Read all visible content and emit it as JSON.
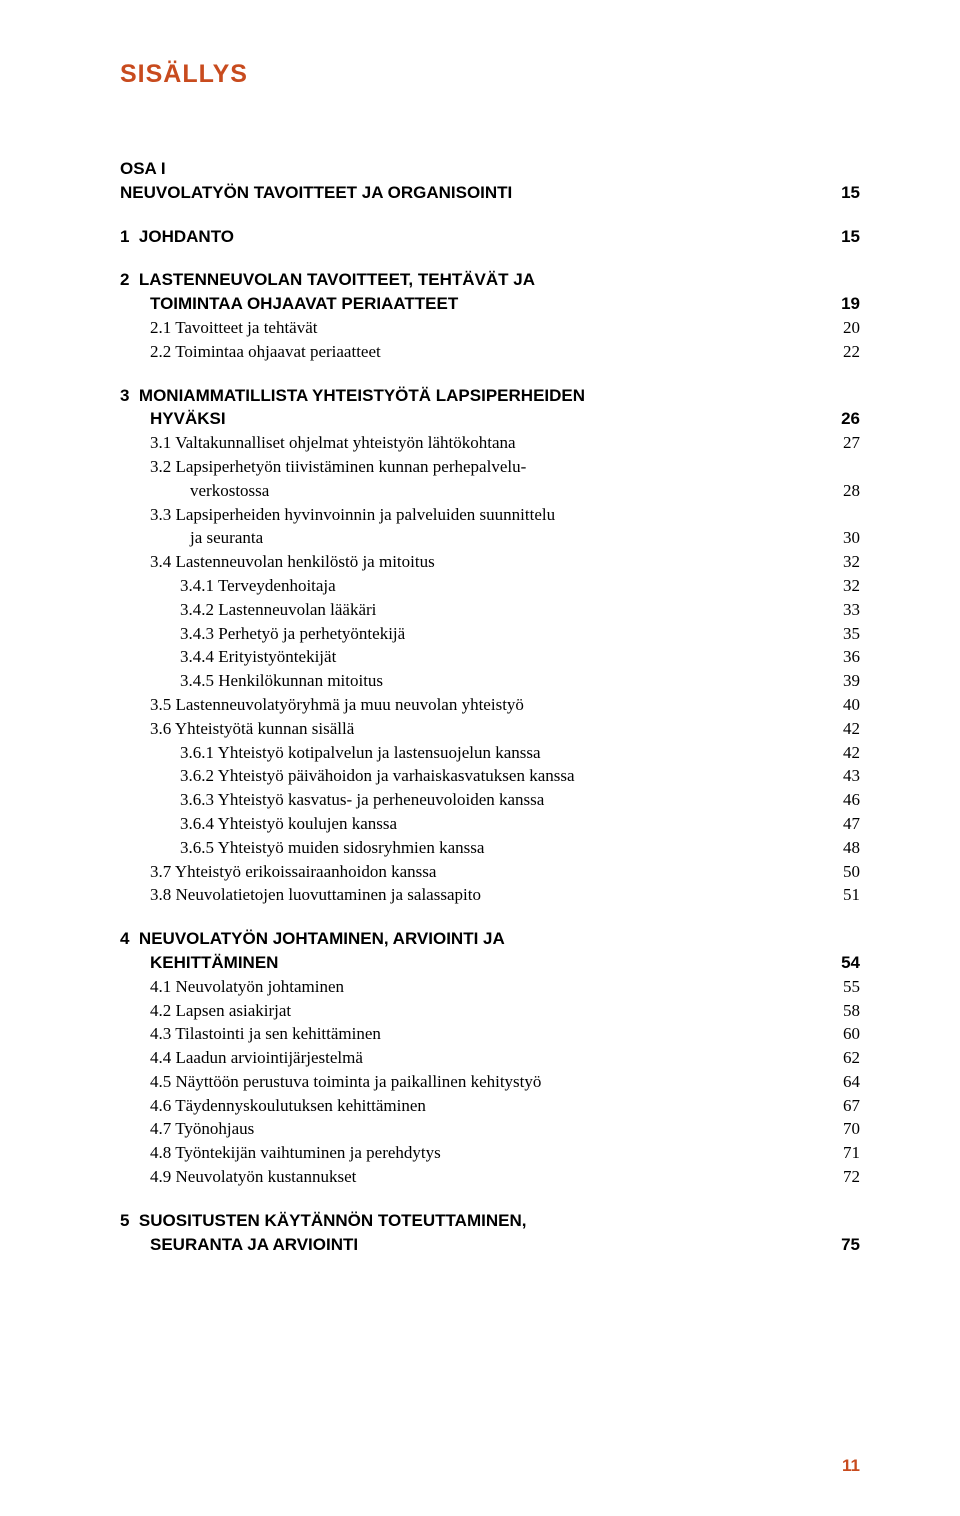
{
  "colors": {
    "accent": "#c84b1e",
    "text": "#222222",
    "background": "#ffffff"
  },
  "typography": {
    "title_font": "Arial",
    "title_size_pt": 19,
    "title_weight": 900,
    "body_font": "Georgia",
    "body_size_pt": 13,
    "bold_font": "Arial"
  },
  "title": "SISÄLLYS",
  "page_number": "11",
  "toc": {
    "part": {
      "heading1": "OSA I",
      "heading2": "NEUVOLATYÖN TAVOITTEET JA ORGANISOINTI",
      "page": "15"
    },
    "ch1": {
      "num": "1",
      "title": "JOHDANTO",
      "page": "15"
    },
    "ch2": {
      "num": "2",
      "title_line1": "LASTENNEUVOLAN TAVOITTEET, TEHTÄVÄT JA",
      "title_line2": "TOIMINTAA OHJAAVAT PERIAATTEET",
      "page": "19",
      "items": [
        {
          "label": "2.1 Tavoitteet ja tehtävät",
          "page": "20"
        },
        {
          "label": "2.2 Toimintaa ohjaavat periaatteet",
          "page": "22"
        }
      ]
    },
    "ch3": {
      "num": "3",
      "title_line1": "MONIAMMATILLISTA YHTEISTYÖTÄ LAPSIPERHEIDEN",
      "title_line2": "HYVÄKSI",
      "page": "26",
      "items": [
        {
          "label": "3.1 Valtakunnalliset ohjelmat yhteistyön lähtökohtana",
          "page": "27"
        },
        {
          "label_l1": "3.2 Lapsiperhetyön tiivistäminen kunnan perhepalvelu-",
          "label_l2": "verkostossa",
          "page": "28"
        },
        {
          "label_l1": "3.3 Lapsiperheiden hyvinvoinnin ja palveluiden suunnittelu",
          "label_l2": "ja seuranta",
          "page": "30"
        },
        {
          "label": "3.4 Lastenneuvolan henkilöstö ja mitoitus",
          "page": "32"
        },
        {
          "label": "3.4.1 Terveydenhoitaja",
          "page": "32",
          "sub": true
        },
        {
          "label": "3.4.2 Lastenneuvolan lääkäri",
          "page": "33",
          "sub": true
        },
        {
          "label": "3.4.3 Perhetyö ja perhetyöntekijä",
          "page": "35",
          "sub": true
        },
        {
          "label": "3.4.4 Erityistyöntekijät",
          "page": "36",
          "sub": true
        },
        {
          "label": "3.4.5 Henkilökunnan mitoitus",
          "page": "39",
          "sub": true
        },
        {
          "label": "3.5 Lastenneuvolatyöryhmä ja muu neuvolan yhteistyö",
          "page": "40"
        },
        {
          "label": "3.6 Yhteistyötä kunnan sisällä",
          "page": "42"
        },
        {
          "label": "3.6.1 Yhteistyö kotipalvelun ja lastensuojelun kanssa",
          "page": "42",
          "sub": true
        },
        {
          "label": "3.6.2 Yhteistyö päivähoidon ja varhaiskasvatuksen kanssa",
          "page": "43",
          "sub": true
        },
        {
          "label": "3.6.3 Yhteistyö kasvatus- ja perheneuvoloiden kanssa",
          "page": "46",
          "sub": true
        },
        {
          "label": "3.6.4 Yhteistyö koulujen kanssa",
          "page": "47",
          "sub": true
        },
        {
          "label": "3.6.5 Yhteistyö muiden sidosryhmien kanssa",
          "page": "48",
          "sub": true
        },
        {
          "label": "3.7 Yhteistyö erikoissairaanhoidon kanssa",
          "page": "50"
        },
        {
          "label": "3.8 Neuvolatietojen luovuttaminen ja salassapito",
          "page": "51"
        }
      ]
    },
    "ch4": {
      "num": "4",
      "title_line1": "NEUVOLATYÖN JOHTAMINEN, ARVIOINTI JA",
      "title_line2": "KEHITTÄMINEN",
      "page": "54",
      "items": [
        {
          "label": "4.1 Neuvolatyön johtaminen",
          "page": "55"
        },
        {
          "label": "4.2 Lapsen asiakirjat",
          "page": "58"
        },
        {
          "label": "4.3 Tilastointi ja sen kehittäminen",
          "page": "60"
        },
        {
          "label": "4.4 Laadun arviointijärjestelmä",
          "page": "62"
        },
        {
          "label": "4.5 Näyttöön perustuva toiminta ja paikallinen kehitystyö",
          "page": "64"
        },
        {
          "label": "4.6 Täydennyskoulutuksen kehittäminen",
          "page": "67"
        },
        {
          "label": "4.7 Työnohjaus",
          "page": "70"
        },
        {
          "label": "4.8 Työntekijän vaihtuminen ja perehdytys",
          "page": "71"
        },
        {
          "label": "4.9 Neuvolatyön kustannukset",
          "page": "72"
        }
      ]
    },
    "ch5": {
      "num": "5",
      "title_line1": "SUOSITUSTEN KÄYTÄNNÖN TOTEUTTAMINEN,",
      "title_line2": "SEURANTA JA ARVIOINTI",
      "page": "75"
    }
  }
}
